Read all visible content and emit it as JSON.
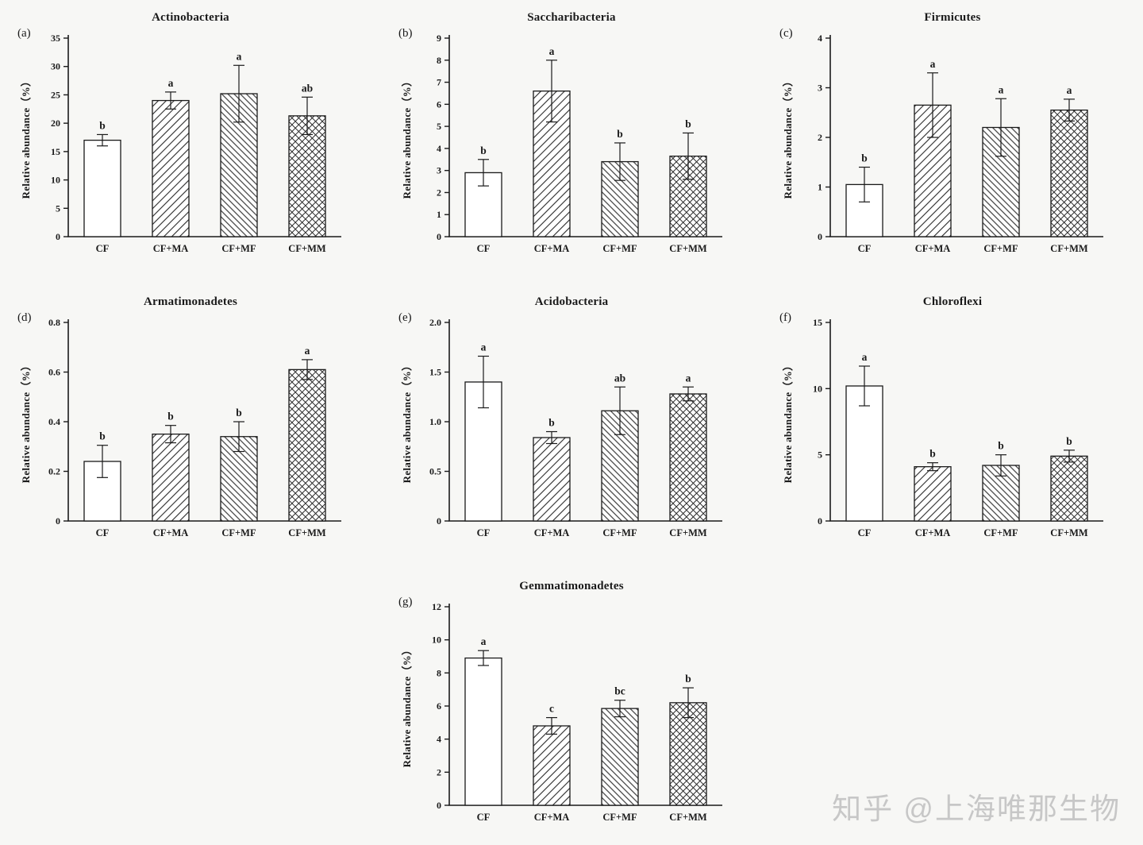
{
  "figure": {
    "background": "#f7f7f5",
    "ink": "#1a1a1a",
    "watermark": "知乎 @上海唯那生物",
    "watermark_color": "#c7c7c7"
  },
  "chart_data": [
    {
      "type": "bar",
      "panel": "(a)",
      "title": "Actinobacteria",
      "ylabel": "Relative abundance（%）",
      "ylim": [
        0,
        35
      ],
      "yticks": [
        "0",
        "5",
        "10",
        "15",
        "20",
        "25",
        "30",
        "35"
      ],
      "categories": [
        "CF",
        "CF+MA",
        "CF+MF",
        "CF+MM"
      ],
      "values": [
        17.0,
        24.0,
        25.2,
        21.3
      ],
      "errors": [
        1.0,
        1.5,
        5.0,
        3.3
      ],
      "sig_letters": [
        "b",
        "a",
        "a",
        "ab"
      ],
      "bar_patterns": [
        "plain",
        "hatch-up",
        "hatch-down",
        "crosshatch"
      ],
      "legend": "none",
      "grid": "off"
    },
    {
      "type": "bar",
      "panel": "(b)",
      "title": "Saccharibacteria",
      "ylabel": "Relative abundance（%）",
      "ylim": [
        0,
        9
      ],
      "yticks": [
        "0",
        "1",
        "2",
        "3",
        "4",
        "5",
        "6",
        "7",
        "8",
        "9"
      ],
      "categories": [
        "CF",
        "CF+MA",
        "CF+MF",
        "CF+MM"
      ],
      "values": [
        2.9,
        6.6,
        3.4,
        3.65
      ],
      "errors": [
        0.6,
        1.4,
        0.85,
        1.05
      ],
      "sig_letters": [
        "b",
        "a",
        "b",
        "b"
      ],
      "bar_patterns": [
        "plain",
        "hatch-up",
        "hatch-down",
        "crosshatch"
      ],
      "legend": "none",
      "grid": "off"
    },
    {
      "type": "bar",
      "panel": "(c)",
      "title": "Firmicutes",
      "ylabel": "Relative abundance（%）",
      "ylim": [
        0,
        4
      ],
      "yticks": [
        "0",
        "1",
        "2",
        "3",
        "4"
      ],
      "categories": [
        "CF",
        "CF+MA",
        "CF+MF",
        "CF+MM"
      ],
      "values": [
        1.05,
        2.65,
        2.2,
        2.55
      ],
      "errors": [
        0.35,
        0.65,
        0.58,
        0.22
      ],
      "sig_letters": [
        "b",
        "a",
        "a",
        "a"
      ],
      "bar_patterns": [
        "plain",
        "hatch-up",
        "hatch-down",
        "crosshatch"
      ],
      "legend": "none",
      "grid": "off"
    },
    {
      "type": "bar",
      "panel": "(d)",
      "title": "Armatimonadetes",
      "ylabel": "Relative abundance（%）",
      "ylim": [
        0,
        0.8
      ],
      "yticks": [
        "0",
        "0.2",
        "0.4",
        "0.6",
        "0.8"
      ],
      "categories": [
        "CF",
        "CF+MA",
        "CF+MF",
        "CF+MM"
      ],
      "values": [
        0.24,
        0.35,
        0.34,
        0.61
      ],
      "errors": [
        0.065,
        0.035,
        0.06,
        0.04
      ],
      "sig_letters": [
        "b",
        "b",
        "b",
        "a"
      ],
      "bar_patterns": [
        "plain",
        "hatch-up",
        "hatch-down",
        "crosshatch"
      ],
      "legend": "none",
      "grid": "off"
    },
    {
      "type": "bar",
      "panel": "(e)",
      "title": "Acidobacteria",
      "ylabel": "Relative abundance（%）",
      "ylim": [
        0,
        2.0
      ],
      "yticks": [
        "0",
        "0.5",
        "1.0",
        "1.5",
        "2.0"
      ],
      "categories": [
        "CF",
        "CF+MA",
        "CF+MF",
        "CF+MM"
      ],
      "values": [
        1.4,
        0.84,
        1.11,
        1.28
      ],
      "errors": [
        0.26,
        0.06,
        0.24,
        0.07
      ],
      "sig_letters": [
        "a",
        "b",
        "ab",
        "a"
      ],
      "bar_patterns": [
        "plain",
        "hatch-up",
        "hatch-down",
        "crosshatch"
      ],
      "legend": "none",
      "grid": "off"
    },
    {
      "type": "bar",
      "panel": "(f)",
      "title": "Chloroflexi",
      "ylabel": "Relative abundance（%）",
      "ylim": [
        0,
        15
      ],
      "yticks": [
        "0",
        "5",
        "10",
        "15"
      ],
      "categories": [
        "CF",
        "CF+MA",
        "CF+MF",
        "CF+MM"
      ],
      "values": [
        10.2,
        4.1,
        4.2,
        4.9
      ],
      "errors": [
        1.5,
        0.3,
        0.8,
        0.45
      ],
      "sig_letters": [
        "a",
        "b",
        "b",
        "b"
      ],
      "bar_patterns": [
        "plain",
        "hatch-up",
        "hatch-down",
        "crosshatch"
      ],
      "legend": "none",
      "grid": "off"
    },
    {
      "type": "bar",
      "panel": "(g)",
      "title": "Gemmatimonadetes",
      "ylabel": "Relative abundance（%）",
      "ylim": [
        0,
        12
      ],
      "yticks": [
        "0",
        "2",
        "4",
        "6",
        "8",
        "10",
        "12"
      ],
      "categories": [
        "CF",
        "CF+MA",
        "CF+MF",
        "CF+MM"
      ],
      "values": [
        8.9,
        4.8,
        5.85,
        6.2
      ],
      "errors": [
        0.45,
        0.5,
        0.5,
        0.9
      ],
      "sig_letters": [
        "a",
        "c",
        "bc",
        "b"
      ],
      "bar_patterns": [
        "plain",
        "hatch-up",
        "hatch-down",
        "crosshatch"
      ],
      "legend": "none",
      "grid": "off"
    }
  ]
}
